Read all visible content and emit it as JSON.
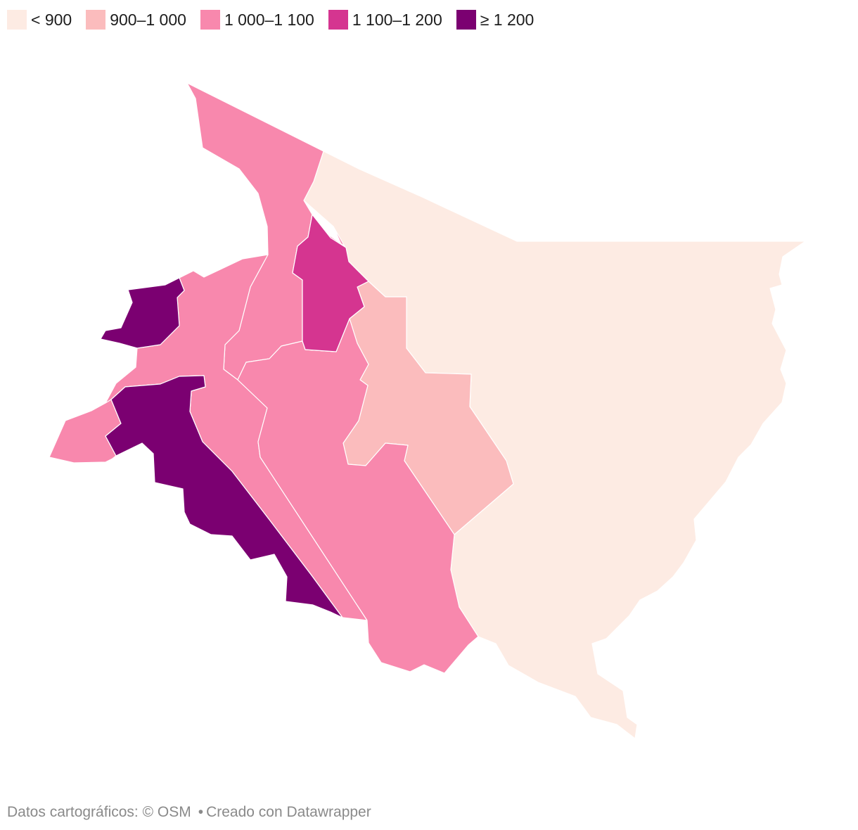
{
  "legend": {
    "items": [
      {
        "label": "< 900",
        "color": "#fdebe3"
      },
      {
        "label": "900–1 000",
        "color": "#fbbcbd"
      },
      {
        "label": "1 000–1 100",
        "color": "#f888ad"
      },
      {
        "label": "1 100–1 200",
        "color": "#d53590"
      },
      {
        "label": "≥ 1 200",
        "color": "#7b0071"
      }
    ]
  },
  "regions": [
    {
      "class": "< 900"
    },
    {
      "class": "900–1 000"
    },
    {
      "class": "1 000–1 100"
    },
    {
      "class": "1 000–1 100"
    },
    {
      "class": "1 000–1 100"
    },
    {
      "class": "1 000–1 100"
    },
    {
      "class": "1 000–1 100"
    },
    {
      "class": "1 000–1 100"
    },
    {
      "class": "1 100–1 200"
    },
    {
      "class": "≥ 1 200"
    },
    {
      "class": "≥ 1 200"
    }
  ],
  "footer": {
    "map_data": "Datos cartográficos: © OSM",
    "separator": "•",
    "credit": "Creado con Datawrapper"
  }
}
